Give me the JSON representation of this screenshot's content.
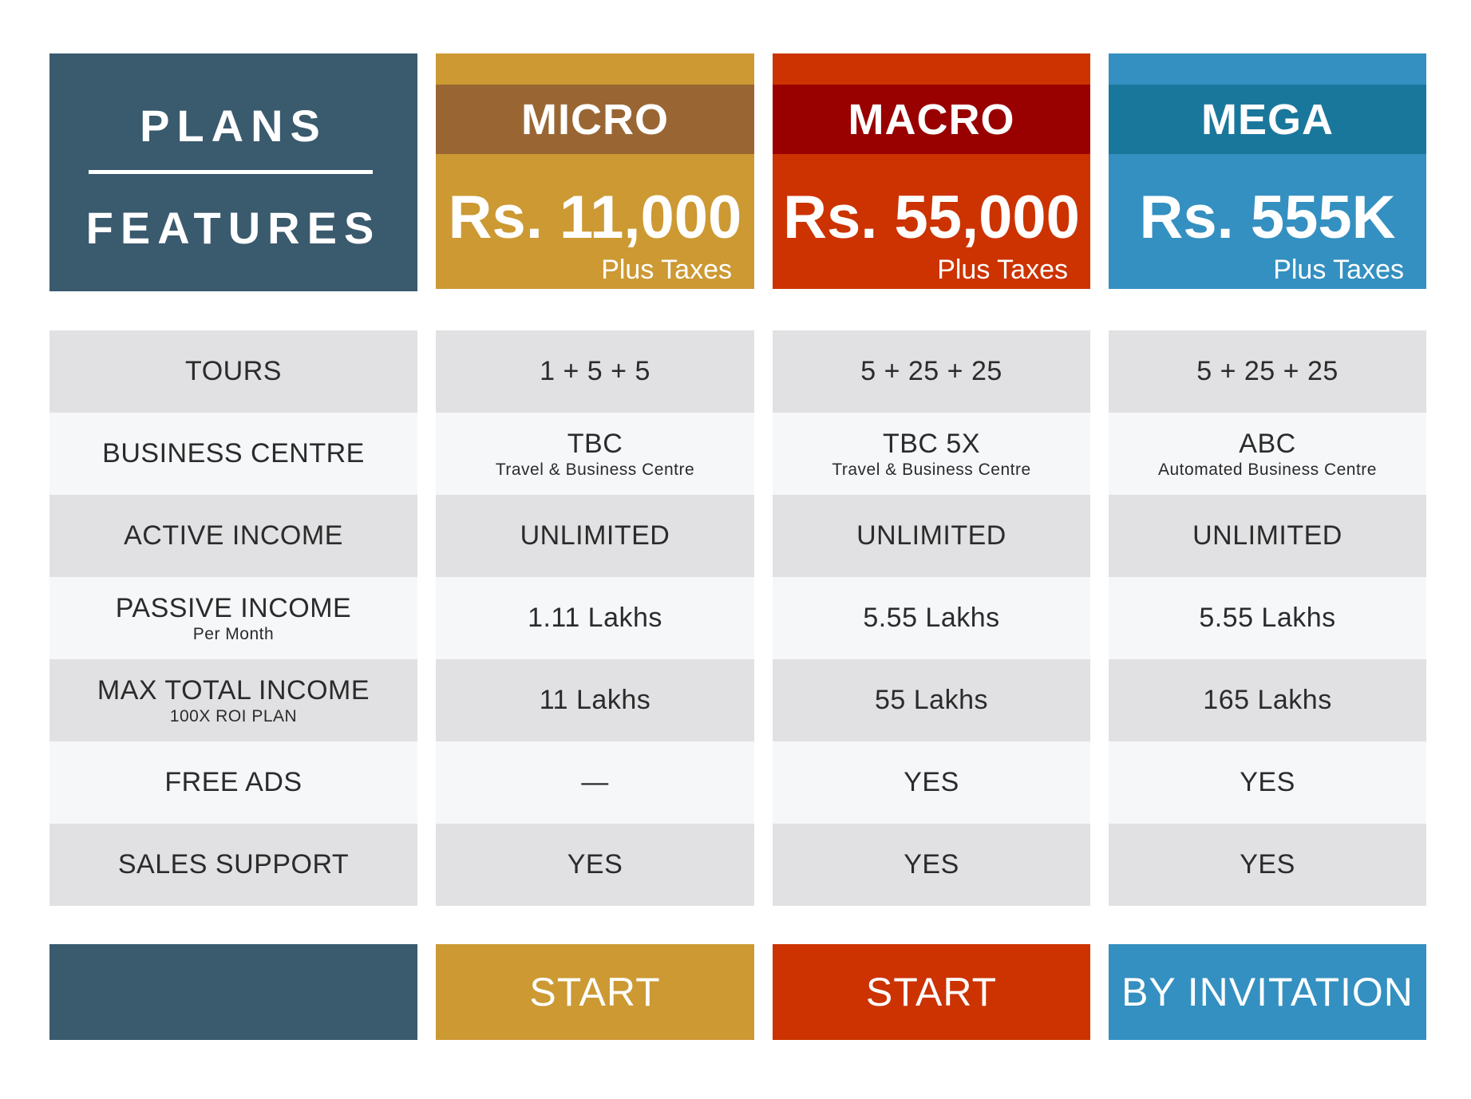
{
  "colors": {
    "navy": "#3a5a6e",
    "micro_body": "#cc9933",
    "micro_band": "#996633",
    "macro_body": "#cc3300",
    "macro_band": "#990000",
    "mega_body": "#3490c0",
    "mega_band": "#1a779c",
    "row_grey": "#e1e1e3",
    "row_light": "#f6f7f9"
  },
  "header": {
    "plans_label": "PLANS",
    "features_label": "FEATURES"
  },
  "plans": [
    {
      "name": "MICRO",
      "price": "Rs. 11,000",
      "taxes": "Plus Taxes",
      "cta": "START"
    },
    {
      "name": "MACRO",
      "price": "Rs. 55,000",
      "taxes": "Plus Taxes",
      "cta": "START"
    },
    {
      "name": "MEGA",
      "price": "Rs. 555K",
      "taxes": "Plus Taxes",
      "cta": "BY INVITATION"
    }
  ],
  "rows": [
    {
      "feature": "TOURS",
      "feature_sub": "",
      "values": [
        {
          "main": "1 + 5 + 5",
          "sub": ""
        },
        {
          "main": "5 + 25 + 25",
          "sub": ""
        },
        {
          "main": "5 + 25 + 25",
          "sub": ""
        }
      ]
    },
    {
      "feature": "BUSINESS CENTRE",
      "feature_sub": "",
      "values": [
        {
          "main": "TBC",
          "sub": "Travel & Business Centre"
        },
        {
          "main": "TBC 5X",
          "sub": "Travel & Business Centre"
        },
        {
          "main": "ABC",
          "sub": "Automated Business Centre"
        }
      ]
    },
    {
      "feature": "ACTIVE INCOME",
      "feature_sub": "",
      "values": [
        {
          "main": "UNLIMITED",
          "sub": ""
        },
        {
          "main": "UNLIMITED",
          "sub": ""
        },
        {
          "main": "UNLIMITED",
          "sub": ""
        }
      ]
    },
    {
      "feature": "PASSIVE INCOME",
      "feature_sub": "Per Month",
      "values": [
        {
          "main": "1.11 Lakhs",
          "sub": ""
        },
        {
          "main": "5.55 Lakhs",
          "sub": ""
        },
        {
          "main": "5.55 Lakhs",
          "sub": ""
        }
      ]
    },
    {
      "feature": "MAX TOTAL INCOME",
      "feature_sub": "100X ROI PLAN",
      "values": [
        {
          "main": "11 Lakhs",
          "sub": ""
        },
        {
          "main": "55 Lakhs",
          "sub": ""
        },
        {
          "main": "165 Lakhs",
          "sub": ""
        }
      ]
    },
    {
      "feature": "FREE ADS",
      "feature_sub": "",
      "values": [
        {
          "main": "—",
          "sub": ""
        },
        {
          "main": "YES",
          "sub": ""
        },
        {
          "main": "YES",
          "sub": ""
        }
      ]
    },
    {
      "feature": "SALES SUPPORT",
      "feature_sub": "",
      "values": [
        {
          "main": "YES",
          "sub": ""
        },
        {
          "main": "YES",
          "sub": ""
        },
        {
          "main": "YES",
          "sub": ""
        }
      ]
    }
  ]
}
